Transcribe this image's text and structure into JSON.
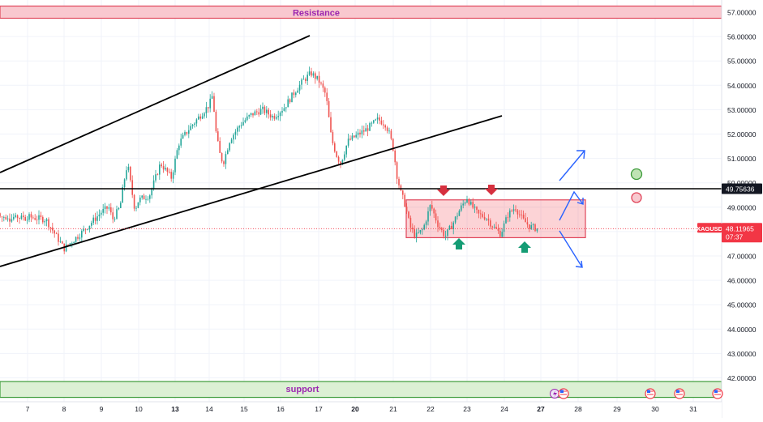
{
  "chart_data": {
    "type": "candlestick",
    "symbol": "XAGUSD",
    "last_price": "48.11965",
    "countdown": "07:37",
    "horizontal_line_value": "49.75636",
    "ylim": [
      41.5,
      57.25
    ],
    "y_ticks": [
      "57.00000",
      "56.00000",
      "55.00000",
      "54.00000",
      "53.00000",
      "52.00000",
      "51.00000",
      "50.00000",
      "49.00000",
      "48.00000",
      "47.00000",
      "46.00000",
      "45.00000",
      "44.00000",
      "43.00000",
      "42.00000"
    ],
    "x_ticks": [
      {
        "label": "7",
        "bold": false
      },
      {
        "label": "8",
        "bold": false
      },
      {
        "label": "9",
        "bold": false
      },
      {
        "label": "10",
        "bold": false
      },
      {
        "label": "13",
        "bold": true
      },
      {
        "label": "14",
        "bold": false
      },
      {
        "label": "15",
        "bold": false
      },
      {
        "label": "16",
        "bold": false
      },
      {
        "label": "17",
        "bold": false
      },
      {
        "label": "20",
        "bold": true
      },
      {
        "label": "21",
        "bold": false
      },
      {
        "label": "22",
        "bold": false
      },
      {
        "label": "23",
        "bold": false
      },
      {
        "label": "24",
        "bold": false
      },
      {
        "label": "27",
        "bold": true
      },
      {
        "label": "28",
        "bold": false
      },
      {
        "label": "29",
        "bold": false
      },
      {
        "label": "30",
        "bold": false
      },
      {
        "label": "31",
        "bold": false
      }
    ],
    "zones": {
      "resistance": {
        "label": "Resistance",
        "low": 56.75,
        "high": 57.25
      },
      "support": {
        "label": "support",
        "low": 41.2,
        "high": 41.85
      },
      "range_box": {
        "low": 47.75,
        "high": 49.3
      }
    },
    "price_path": [
      [
        7.0,
        48.6
      ],
      [
        7.5,
        48.5
      ],
      [
        8.0,
        47.3
      ],
      [
        8.5,
        48.0
      ],
      [
        9.0,
        48.8
      ],
      [
        9.2,
        49.0
      ],
      [
        9.3,
        48.5
      ],
      [
        9.5,
        49.0
      ],
      [
        9.6,
        50.0
      ],
      [
        9.7,
        50.8
      ],
      [
        9.8,
        49.8
      ],
      [
        9.9,
        48.9
      ],
      [
        10.0,
        49.3
      ],
      [
        10.3,
        49.5
      ],
      [
        10.6,
        50.8
      ],
      [
        10.9,
        50.2
      ],
      [
        11.1,
        51.6
      ],
      [
        11.4,
        52.2
      ],
      [
        11.7,
        52.7
      ],
      [
        12.0,
        53.2
      ],
      [
        12.1,
        53.6
      ],
      [
        12.2,
        52.0
      ],
      [
        12.3,
        51.2
      ],
      [
        12.4,
        50.8
      ],
      [
        12.6,
        51.8
      ],
      [
        12.9,
        52.4
      ],
      [
        13.2,
        52.8
      ],
      [
        13.5,
        53.0
      ],
      [
        13.8,
        52.7
      ],
      [
        14.1,
        53.1
      ],
      [
        14.4,
        53.8
      ],
      [
        14.6,
        54.2
      ],
      [
        14.8,
        54.5
      ],
      [
        15.0,
        54.2
      ],
      [
        15.2,
        53.6
      ],
      [
        15.35,
        51.8
      ],
      [
        15.5,
        51.1
      ],
      [
        15.6,
        50.8
      ],
      [
        15.8,
        51.7
      ],
      [
        16.0,
        51.9
      ],
      [
        16.3,
        52.2
      ],
      [
        16.6,
        52.6
      ],
      [
        16.8,
        52.4
      ],
      [
        16.9,
        52.0
      ],
      [
        17.0,
        51.4
      ],
      [
        17.1,
        50.3
      ],
      [
        17.2,
        49.6
      ],
      [
        17.3,
        49.2
      ],
      [
        17.45,
        48.2
      ],
      [
        17.6,
        47.8
      ],
      [
        17.8,
        48.1
      ],
      [
        18.0,
        49.1
      ],
      [
        18.2,
        48.3
      ],
      [
        18.4,
        47.8
      ],
      [
        18.6,
        48.3
      ],
      [
        18.8,
        48.9
      ],
      [
        19.0,
        49.4
      ],
      [
        19.1,
        49.1
      ],
      [
        19.3,
        48.7
      ],
      [
        19.5,
        48.6
      ],
      [
        19.7,
        48.2
      ],
      [
        19.9,
        47.9
      ],
      [
        20.1,
        48.7
      ],
      [
        20.3,
        49.0
      ],
      [
        20.5,
        48.5
      ],
      [
        20.7,
        48.2
      ],
      [
        20.9,
        48.12
      ]
    ]
  },
  "annotations": {
    "markers": [
      {
        "type": "down-arrow",
        "color": "#d6303f",
        "x": 547,
        "y": 236
      },
      {
        "type": "down-arrow",
        "color": "#d6303f",
        "x": 606,
        "y": 235
      },
      {
        "type": "up-arrow",
        "color": "#149c74",
        "x": 566,
        "y": 301
      },
      {
        "type": "up-arrow",
        "color": "#149c74",
        "x": 647,
        "y": 305
      }
    ],
    "circles": [
      {
        "color": "green",
        "stroke": "#3d9b3a",
        "fill": "#bfe3b4",
        "x": 785,
        "y": 215,
        "r": 6.5
      },
      {
        "color": "red",
        "stroke": "#e0455a",
        "fill": "#f8c9cf",
        "x": 785,
        "y": 244,
        "r": 6
      }
    ]
  },
  "colors": {
    "up": "#26a69a",
    "down": "#ef5350",
    "symbol_badge": "#f23645",
    "resistance_fill": "#f9c8cf",
    "resistance_border": "#e0455a",
    "support_fill": "#dcf0d4",
    "support_border": "#3d9b3a",
    "zone_label": "#9c27b0",
    "arrows": "#2962ff"
  }
}
